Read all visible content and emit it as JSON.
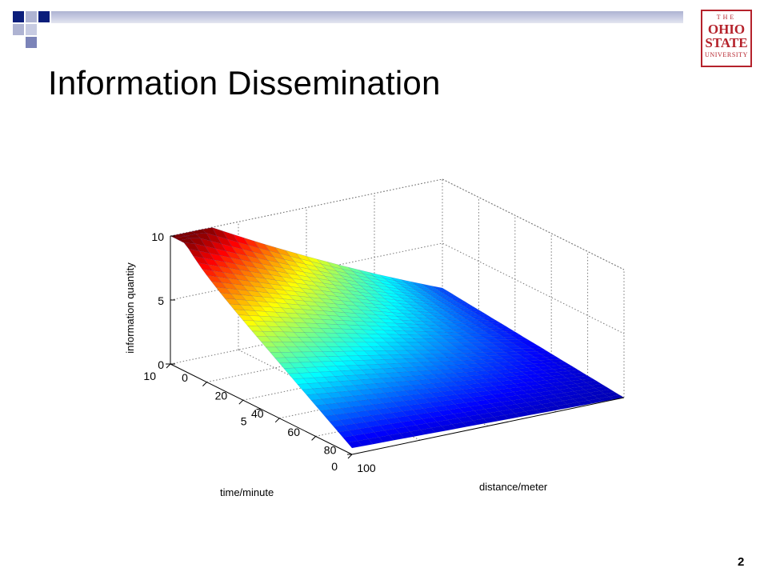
{
  "slide": {
    "title": "Information Dissemination",
    "page_number": "2"
  },
  "logo": {
    "line1": "THE",
    "line2": "OHIO",
    "line3": "STATE",
    "line4": "UNIVERSITY",
    "color": "#b5222b"
  },
  "theme": {
    "accent_dark": "#0b1e7b",
    "accent_light": "#aeb3d2"
  },
  "chart_data": {
    "type": "surface",
    "title": "",
    "xlabel": "distance/meter",
    "ylabel": "time/minute",
    "zlabel": "information quantity",
    "x_ticks": [
      "0",
      "20",
      "40",
      "60",
      "80",
      "100"
    ],
    "y_ticks": [
      "0",
      "5",
      "10"
    ],
    "z_ticks": [
      "0",
      "5",
      "10"
    ],
    "xlim": [
      0,
      100
    ],
    "ylim": [
      0,
      10
    ],
    "zlim": [
      0,
      10
    ],
    "grid": true,
    "colormap": "jet",
    "corner_values": [
      {
        "distance": 0,
        "time": 10,
        "quantity": 10
      },
      {
        "distance": 0,
        "time": 0,
        "quantity": 1.5
      },
      {
        "distance": 100,
        "time": 10,
        "quantity": 0.5
      },
      {
        "distance": 100,
        "time": 0,
        "quantity": 0
      }
    ]
  }
}
